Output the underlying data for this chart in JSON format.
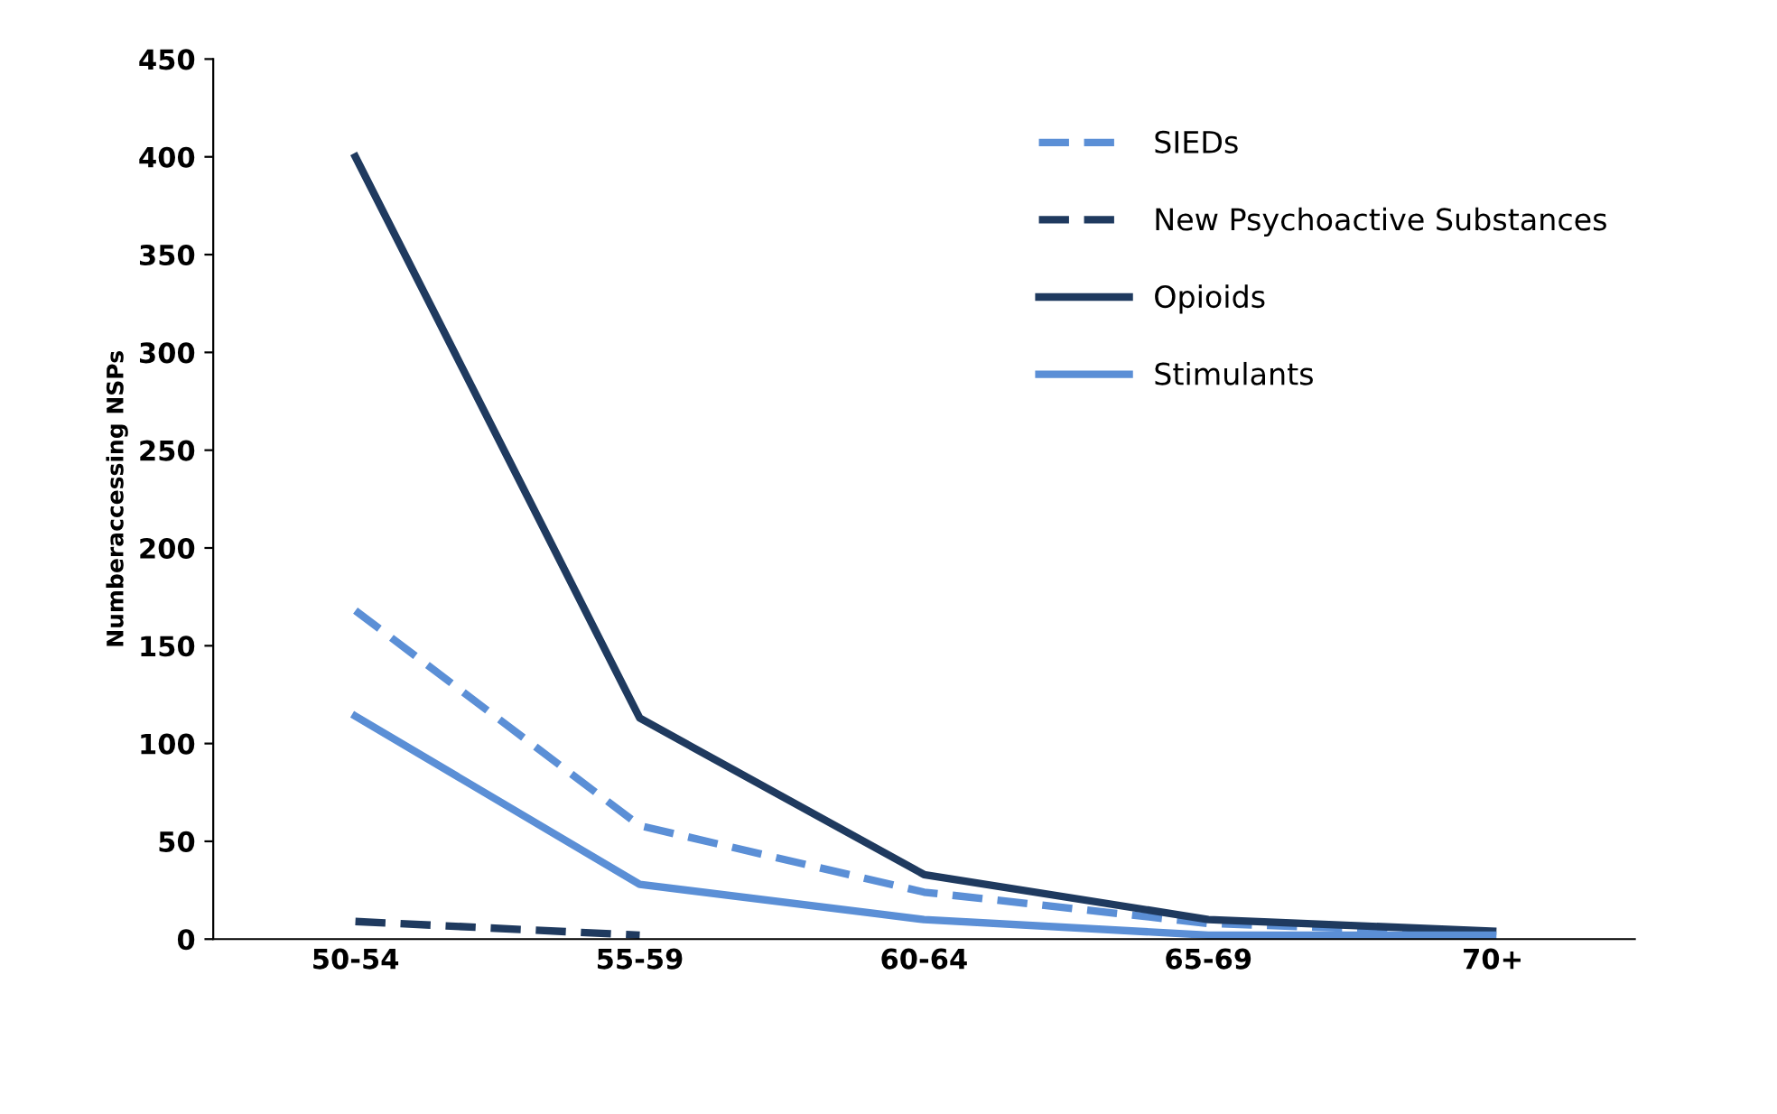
{
  "chart_data": {
    "type": "line",
    "ylabel": "Numberaccessing NSPs",
    "categories": [
      "50-54",
      "55-59",
      "60-64",
      "65-69",
      "70+"
    ],
    "series": [
      {
        "name": "SIEDs",
        "color": "#5b8fd6",
        "line_style": "dashed",
        "values": [
          168,
          58,
          24,
          8,
          3
        ]
      },
      {
        "name": "New Psychoactive Substances",
        "color": "#1f3a5f",
        "line_style": "dashed",
        "values": [
          9,
          2,
          null,
          null,
          null
        ]
      },
      {
        "name": "Opioids",
        "color": "#1f3a5f",
        "line_style": "solid",
        "values": [
          400,
          113,
          33,
          10,
          4
        ]
      },
      {
        "name": "Stimulants",
        "color": "#5b8fd6",
        "line_style": "solid",
        "values": [
          114,
          28,
          10,
          2,
          2
        ]
      }
    ],
    "ylim": [
      0,
      450
    ],
    "yticks": [
      0,
      50,
      100,
      150,
      200,
      250,
      300,
      350,
      400,
      450
    ],
    "grid": false,
    "legend": "top right",
    "marker": "none"
  }
}
